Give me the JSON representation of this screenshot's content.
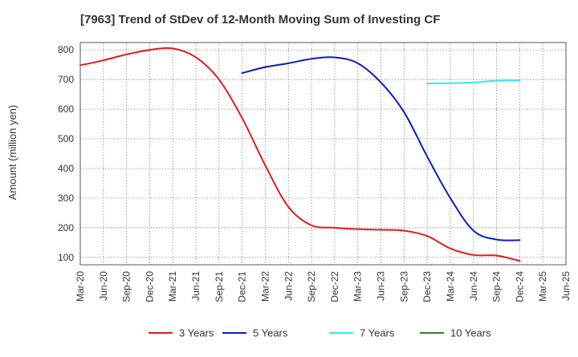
{
  "chart_data": {
    "type": "line",
    "title": "[7963]  Trend of StDev of 12-Month Moving Sum of Investing CF",
    "xlabel": "",
    "ylabel": "Amount (million yen)",
    "ylim": [
      75,
      825
    ],
    "yticks": [
      100,
      200,
      300,
      400,
      500,
      600,
      700,
      800
    ],
    "grid": true,
    "legend_position": "bottom",
    "x_tick_labels": [
      "Mar-20",
      "Jun-20",
      "Sep-20",
      "Dec-20",
      "Mar-21",
      "Jun-21",
      "Sep-21",
      "Dec-21",
      "Mar-22",
      "Jun-22",
      "Sep-22",
      "Dec-22",
      "Mar-23",
      "Jun-23",
      "Sep-23",
      "Dec-23",
      "Mar-24",
      "Jun-24",
      "Sep-24",
      "Dec-24",
      "Mar-25",
      "Jun-25"
    ],
    "series": [
      {
        "name": "3 Years",
        "color": "#e31a1c",
        "points": [
          [
            0,
            748
          ],
          [
            1,
            765
          ],
          [
            2,
            785
          ],
          [
            3,
            800
          ],
          [
            4,
            805
          ],
          [
            5,
            775
          ],
          [
            6,
            700
          ],
          [
            7,
            570
          ],
          [
            8,
            410
          ],
          [
            9,
            270
          ],
          [
            10,
            208
          ],
          [
            11,
            200
          ],
          [
            12,
            195
          ],
          [
            13,
            193
          ],
          [
            14,
            190
          ],
          [
            15,
            172
          ],
          [
            16,
            130
          ],
          [
            17,
            108
          ],
          [
            18,
            106
          ],
          [
            19,
            88
          ]
        ]
      },
      {
        "name": "5 Years",
        "color": "#0a1cbe",
        "points": [
          [
            7,
            722
          ],
          [
            8,
            742
          ],
          [
            9,
            755
          ],
          [
            10,
            770
          ],
          [
            11,
            775
          ],
          [
            12,
            755
          ],
          [
            13,
            690
          ],
          [
            14,
            590
          ],
          [
            15,
            440
          ],
          [
            16,
            300
          ],
          [
            17,
            190
          ],
          [
            18,
            160
          ],
          [
            19,
            158
          ]
        ]
      },
      {
        "name": "7 Years",
        "color": "#33e8f0",
        "points": [
          [
            15,
            687
          ],
          [
            16,
            688
          ],
          [
            17,
            690
          ],
          [
            18,
            696
          ],
          [
            19,
            697
          ]
        ]
      },
      {
        "name": "10 Years",
        "color": "#2a8a2a",
        "points": []
      }
    ]
  }
}
